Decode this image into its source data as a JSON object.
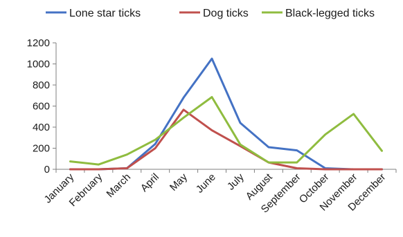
{
  "chart_data": {
    "type": "line",
    "categories": [
      "January",
      "February",
      "March",
      "April",
      "May",
      "June",
      "July",
      "August",
      "September",
      "October",
      "November",
      "December"
    ],
    "series": [
      {
        "name": "Lone star ticks",
        "color": "#4472c4",
        "values": [
          0,
          0,
          10,
          240,
          680,
          1050,
          440,
          210,
          180,
          10,
          0,
          0
        ]
      },
      {
        "name": "Dog ticks",
        "color": "#c0504d",
        "values": [
          0,
          0,
          10,
          200,
          565,
          370,
          220,
          65,
          10,
          0,
          0,
          0
        ]
      },
      {
        "name": "Black-legged ticks",
        "color": "#8fbc3f",
        "values": [
          75,
          45,
          140,
          280,
          490,
          685,
          235,
          65,
          65,
          330,
          525,
          175
        ]
      }
    ],
    "yticks": [
      "0",
      "200",
      "400",
      "600",
      "800",
      "1000",
      "1200"
    ],
    "ylim": [
      0,
      1200
    ],
    "grid": false,
    "legend_position": "top"
  }
}
